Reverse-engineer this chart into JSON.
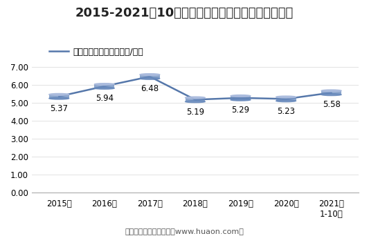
{
  "title": "2015-2021年10月郑州商品交易所白糖期货成交均价",
  "legend_label": "白糖期货成交均价（万元/手）",
  "years": [
    "2015年",
    "2016年",
    "2017年",
    "2018年",
    "2019年",
    "2020年",
    "2021年\n1-10月"
  ],
  "values": [
    5.37,
    5.94,
    6.48,
    5.19,
    5.29,
    5.23,
    5.58
  ],
  "line_color": "#5577aa",
  "body_color": "#6688bb",
  "top_ellipse_color": "#aabbdd",
  "ylim": [
    0.0,
    7.0
  ],
  "yticks": [
    0.0,
    1.0,
    2.0,
    3.0,
    4.0,
    5.0,
    6.0,
    7.0
  ],
  "footer": "制图：华经产业研究院（www.huaon.com）",
  "background_color": "#ffffff",
  "title_fontsize": 13,
  "legend_fontsize": 9,
  "tick_fontsize": 8.5,
  "value_fontsize": 8.5,
  "footer_fontsize": 8
}
